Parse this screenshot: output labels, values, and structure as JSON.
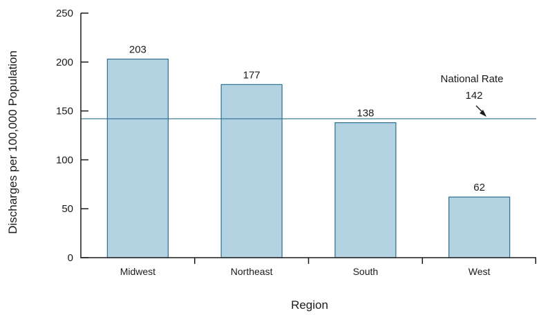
{
  "chart_data": {
    "type": "bar",
    "categories": [
      "Midwest",
      "Northeast",
      "South",
      "West"
    ],
    "values": [
      203,
      177,
      138,
      62
    ],
    "data_labels": [
      "203",
      "177",
      "138",
      "62"
    ],
    "xlabel": "Region",
    "ylabel": "Discharges per 100,000 Population",
    "ylim": [
      0,
      250
    ],
    "yticks": [
      0,
      50,
      100,
      150,
      200,
      250
    ],
    "ytick_labels": [
      "0",
      "50",
      "100",
      "150",
      "200",
      "250"
    ],
    "grid": false,
    "legend": "none",
    "reference_line": {
      "value": 142,
      "label": "National Rate",
      "value_label": "142"
    },
    "colors": {
      "bar_fill": "#b3d2e2",
      "bar_stroke": "#2b6f8f",
      "reference_line": "#2b6f8f",
      "axis": "#1a1a1a"
    }
  }
}
